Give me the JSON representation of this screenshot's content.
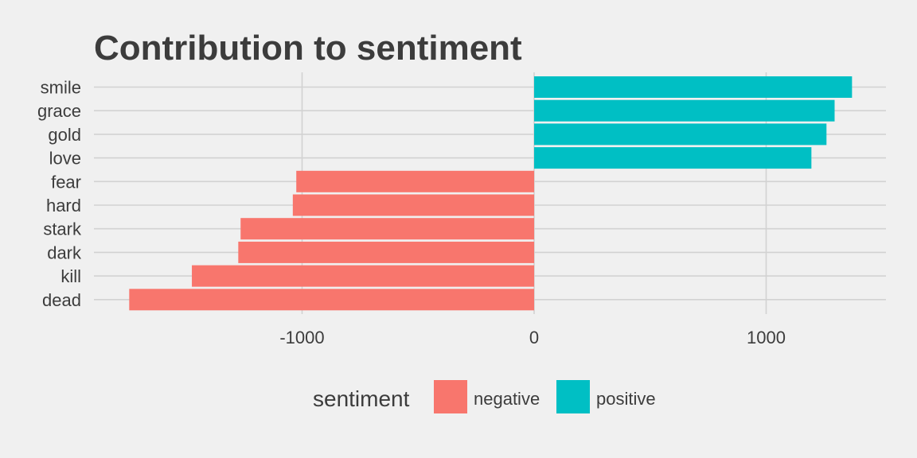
{
  "chart_data": {
    "type": "bar",
    "orientation": "horizontal",
    "title": "Contribution to sentiment",
    "xlabel": "",
    "ylabel": "",
    "categories": [
      "smile",
      "grace",
      "gold",
      "love",
      "fear",
      "hard",
      "stark",
      "dark",
      "kill",
      "dead"
    ],
    "values": [
      1370,
      1295,
      1260,
      1195,
      -1025,
      -1040,
      -1265,
      -1275,
      -1475,
      -1745
    ],
    "sentiment": [
      "positive",
      "positive",
      "positive",
      "positive",
      "negative",
      "negative",
      "negative",
      "negative",
      "negative",
      "negative"
    ],
    "xlim": [
      -1940,
      1560
    ],
    "x_ticks": [
      -1000,
      0,
      1000
    ],
    "x_tick_labels": [
      "-1000",
      "0",
      "1000"
    ],
    "grid": true,
    "legend": {
      "title": "sentiment",
      "position": "bottom",
      "entries": [
        {
          "name": "negative",
          "color": "#f8766d"
        },
        {
          "name": "positive",
          "color": "#00bfc4"
        }
      ]
    },
    "colors": {
      "negative": "#f8766d",
      "positive": "#00bfc4",
      "background": "#f0f0f0",
      "grid": "#d2d2d2",
      "text": "#3c3c3c"
    }
  }
}
